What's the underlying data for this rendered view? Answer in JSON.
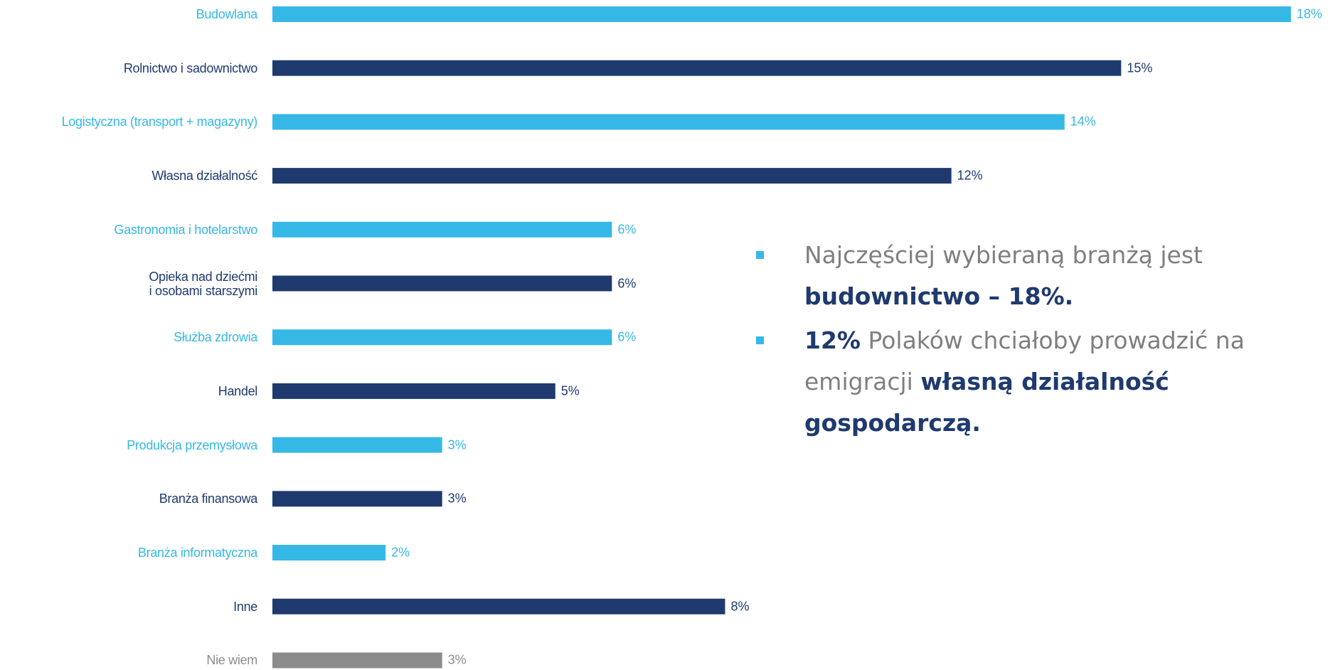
{
  "chart_data": {
    "type": "hbar",
    "categories": [
      "Budowlana",
      "Rolnictwo i sadownictwo",
      "Logistyczna (transport + magazyny)",
      "Własna działalność",
      "Gastronomia i hotelarstwo",
      "Opieka nad dziećmi\ni osobami starszymi",
      "Służba zdrowia",
      "Handel",
      "Produkcja przemysłowa",
      "Branża finansowa",
      "Branża informatyczna",
      "Inne",
      "Nie wiem"
    ],
    "values": [
      18,
      15,
      14,
      12,
      6,
      6,
      6,
      5,
      3,
      3,
      2,
      8,
      3
    ],
    "value_labels": [
      "18%",
      "15%",
      "14%",
      "12%",
      "6%",
      "6%",
      "6%",
      "5%",
      "3%",
      "3%",
      "2%",
      "8%",
      "3%"
    ],
    "colors": [
      "#35b8e6",
      "#1f3a6e",
      "#35b8e6",
      "#1f3a6e",
      "#35b8e6",
      "#1f3a6e",
      "#35b8e6",
      "#1f3a6e",
      "#35b8e6",
      "#1f3a6e",
      "#35b8e6",
      "#1f3a6e",
      "#8c8c8c"
    ],
    "xlim": [
      0,
      18
    ]
  },
  "notes": [
    [
      {
        "text": "Najczęściej wybieraną branżą jest "
      },
      {
        "text": "budownictwo – 18%.",
        "bold": true
      }
    ],
    [
      {
        "text": "12%",
        "bold": true
      },
      {
        "text": " Polaków chciałoby prowadzić na emigracji "
      },
      {
        "text": "własną działalność gospodarczą.",
        "bold": true
      }
    ]
  ]
}
